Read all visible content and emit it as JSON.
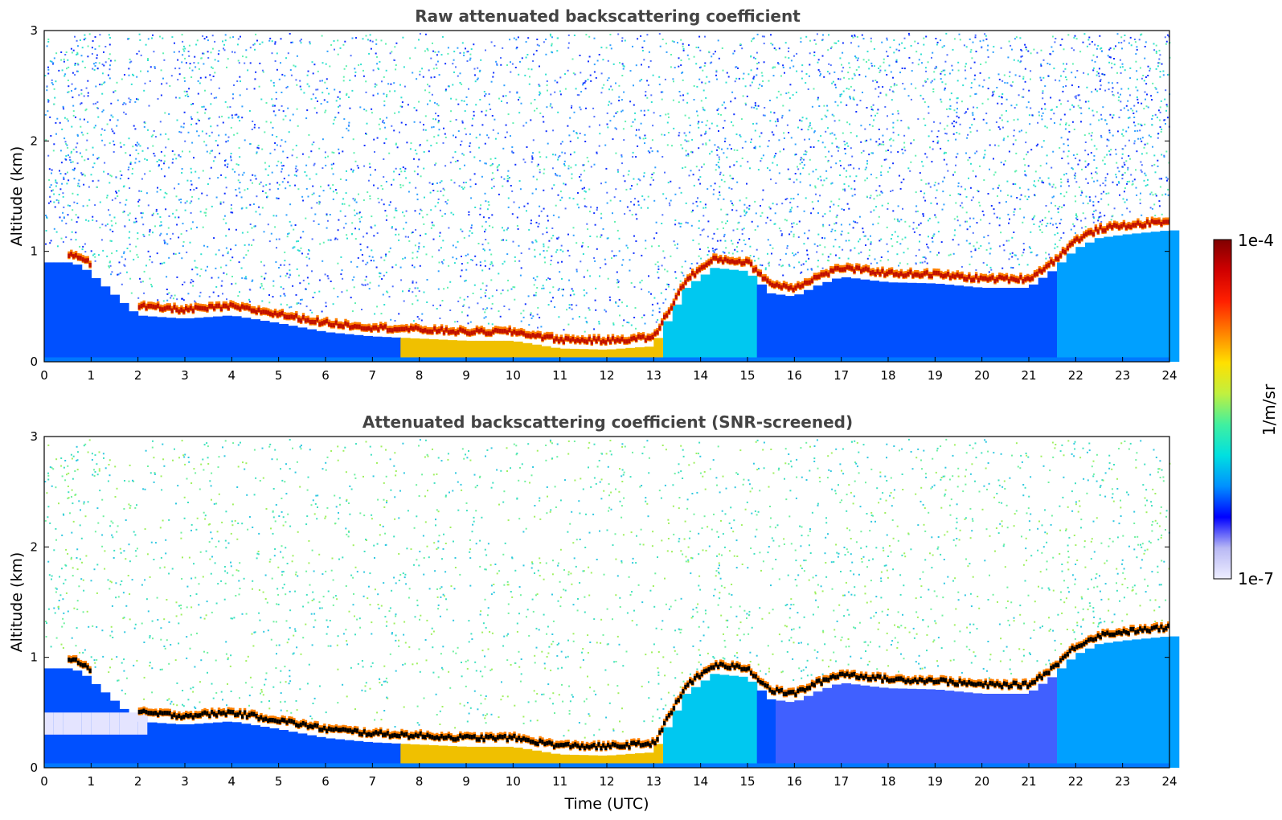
{
  "chart_data": [
    {
      "type": "heatmap",
      "title": "Raw attenuated backscattering coefficient",
      "xlabel": "",
      "ylabel": "Altitude (km)",
      "xlim": [
        0,
        24
      ],
      "ylim": [
        0,
        3
      ],
      "xticks": [
        "0",
        "1",
        "2",
        "3",
        "4",
        "5",
        "6",
        "7",
        "8",
        "9",
        "10",
        "11",
        "12",
        "13",
        "14",
        "15",
        "16",
        "17",
        "18",
        "19",
        "20",
        "21",
        "22",
        "23",
        "24"
      ],
      "yticks": [
        "0",
        "1",
        "2",
        "3"
      ],
      "cloud_base_km": {
        "x_utc": [
          0.5,
          0.8,
          2.0,
          3.0,
          4.0,
          5.0,
          6.0,
          7.0,
          8.0,
          9.0,
          10.0,
          11.0,
          12.0,
          13.0,
          13.7,
          14.3,
          15.0,
          15.5,
          16.0,
          16.5,
          17.0,
          18.0,
          19.0,
          20.0,
          21.0,
          21.5,
          22.0,
          22.5,
          23.0,
          23.5,
          24.0
        ],
        "y_km": [
          0.93,
          0.9,
          0.45,
          0.42,
          0.45,
          0.38,
          0.3,
          0.26,
          0.24,
          0.22,
          0.22,
          0.15,
          0.14,
          0.17,
          0.7,
          0.88,
          0.85,
          0.65,
          0.62,
          0.72,
          0.8,
          0.75,
          0.74,
          0.7,
          0.7,
          0.85,
          1.05,
          1.15,
          1.18,
          1.2,
          1.22
        ]
      }
    },
    {
      "type": "heatmap",
      "title": "Attenuated backscattering coefficient (SNR-screened)",
      "xlabel": "Time (UTC)",
      "ylabel": "Altitude (km)",
      "xlim": [
        0,
        24
      ],
      "ylim": [
        0,
        3
      ],
      "xticks": [
        "0",
        "1",
        "2",
        "3",
        "4",
        "5",
        "6",
        "7",
        "8",
        "9",
        "10",
        "11",
        "12",
        "13",
        "14",
        "15",
        "16",
        "17",
        "18",
        "19",
        "20",
        "21",
        "22",
        "23",
        "24"
      ],
      "yticks": [
        "0",
        "1",
        "2",
        "3"
      ],
      "cloud_base_km": {
        "x_utc": [
          0.5,
          0.8,
          2.0,
          3.0,
          4.0,
          5.0,
          6.0,
          7.0,
          8.0,
          9.0,
          10.0,
          11.0,
          12.0,
          13.0,
          13.7,
          14.3,
          15.0,
          15.5,
          16.0,
          16.5,
          17.0,
          18.0,
          19.0,
          20.0,
          21.0,
          21.5,
          22.0,
          22.5,
          23.0,
          23.5,
          24.0
        ],
        "y_km": [
          0.93,
          0.9,
          0.45,
          0.42,
          0.45,
          0.38,
          0.3,
          0.26,
          0.24,
          0.22,
          0.22,
          0.15,
          0.14,
          0.17,
          0.7,
          0.88,
          0.85,
          0.65,
          0.62,
          0.72,
          0.8,
          0.75,
          0.74,
          0.7,
          0.7,
          0.85,
          1.05,
          1.15,
          1.18,
          1.2,
          1.22
        ]
      }
    }
  ],
  "colorbar": {
    "label": "1/m/sr",
    "max_label": "1e-4",
    "min_label": "1e-7",
    "colors": [
      "#eeeeff",
      "#b8b8f4",
      "#0000ff",
      "#0090ff",
      "#00e0e0",
      "#40f0a0",
      "#c0f040",
      "#ffe000",
      "#ff8000",
      "#ff2000",
      "#d00000",
      "#800000"
    ]
  }
}
